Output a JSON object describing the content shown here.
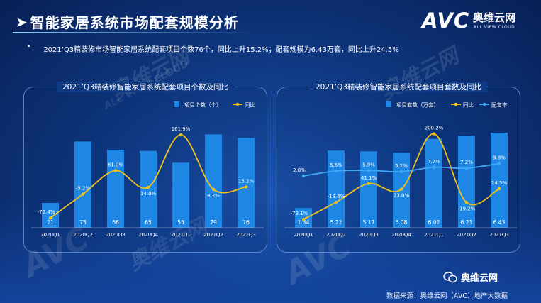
{
  "header": {
    "title_arrow": "➤",
    "title": "智能家居系统市场配套规模分析",
    "logo_text": "AVC",
    "logo_cn": "奥维云网",
    "logo_en": "ALL VIEW CLOUD",
    "bullet": "•",
    "summary": "2021’Q3精装修市场智能家居系统配套项目个数76个，同比上升15.2%；配套规模为6.43万套，同比上升24.5%"
  },
  "watermarks": [
    "奥维云网",
    "ALL VIEW CLOUD",
    "AVC"
  ],
  "footer": {
    "wechat_label": "奥维云网",
    "source": "数据来源：奥维云网（AVC）地产大数据"
  },
  "colors": {
    "bar": "#1e87e6",
    "line_yoy": "#f2c21a",
    "line_rate": "#3fa9f5",
    "background": "#0f3a85"
  },
  "chart_data": [
    {
      "type": "bar",
      "title": "2021’Q3精装修智能家居系统配套项目个数及同比",
      "categories": [
        "2020Q1",
        "2020Q2",
        "2020Q3",
        "2020Q4",
        "2021Q1",
        "2021Q2",
        "2021Q3"
      ],
      "series": [
        {
          "name": "项目个数（个）",
          "type": "bar",
          "values": [
            21,
            73,
            66,
            65,
            55,
            79,
            76
          ],
          "labels": [
            "21",
            "73",
            "66",
            "65",
            "55",
            "79",
            "76"
          ]
        },
        {
          "name": "同比",
          "type": "line",
          "values": [
            -72.4,
            -5.2,
            61.0,
            14.0,
            161.9,
            8.2,
            15.2
          ],
          "labels": [
            "-72.4%",
            "-5.2%",
            "61.0%",
            "14.0%",
            "161.9%",
            "8.2%",
            "15.2%"
          ]
        }
      ],
      "ylim_bar": [
        0,
        90
      ],
      "ylim_line": [
        -100,
        200
      ],
      "legend_position": "top-right",
      "grid": false
    },
    {
      "type": "bar",
      "title": "2021’Q3精装修智能家居系统配套项目套数及同比",
      "categories": [
        "2020Q1",
        "2020Q2",
        "2020Q3",
        "2020Q4",
        "2021Q1",
        "2021Q2",
        "2021Q3"
      ],
      "series": [
        {
          "name": "项目套数（万套）",
          "type": "bar",
          "values": [
            1.34,
            5.22,
            5.17,
            5.08,
            6.02,
            6.23,
            6.43
          ],
          "labels": [
            "1.34",
            "5.22",
            "5.17",
            "5.08",
            "6.02",
            "6.23",
            "6.43"
          ]
        },
        {
          "name": "同比",
          "type": "line",
          "values": [
            -73.1,
            -18.6,
            41.1,
            23.0,
            200.2,
            -19.2,
            24.5
          ],
          "labels": [
            "-73.1%",
            "-18.6%",
            "41.1%",
            "23.0%",
            "200.2%",
            "-19.2%",
            "24.5%"
          ]
        },
        {
          "name": "配套率",
          "type": "line",
          "values": [
            2.8,
            5.6,
            5.9,
            5.2,
            7.7,
            7.2,
            9.8
          ],
          "labels": [
            "2.8%",
            "5.6%",
            "5.9%",
            "5.2%",
            "7.7%",
            "7.2%",
            "9.8%"
          ]
        }
      ],
      "ylim_bar": [
        0,
        7.2
      ],
      "ylim_line": [
        -100,
        240
      ],
      "legend_position": "top-right",
      "grid": false
    }
  ]
}
